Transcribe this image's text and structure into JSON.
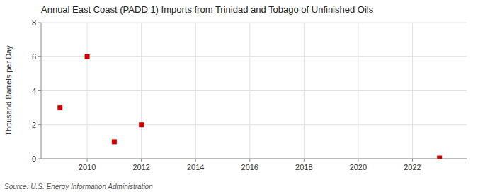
{
  "chart_data": {
    "type": "scatter",
    "title": "Annual East Coast (PADD 1) Imports from Trinidad and Tobago of Unfinished Oils",
    "ylabel": "Thousand Barrels per Day",
    "source": "Source: U.S. Energy Information Administration",
    "x": [
      2009,
      2010,
      2011,
      2012,
      2023
    ],
    "values": [
      3.0,
      6.0,
      1.0,
      2.0,
      0.04
    ],
    "color": "#cc0000",
    "marker": "square",
    "xlim": [
      2008.3,
      2024.0
    ],
    "ylim": [
      0,
      8
    ],
    "xticks": [
      2010,
      2012,
      2014,
      2016,
      2018,
      2020,
      2022
    ],
    "yticks": [
      0,
      2,
      4,
      6,
      8
    ],
    "grid": true
  }
}
